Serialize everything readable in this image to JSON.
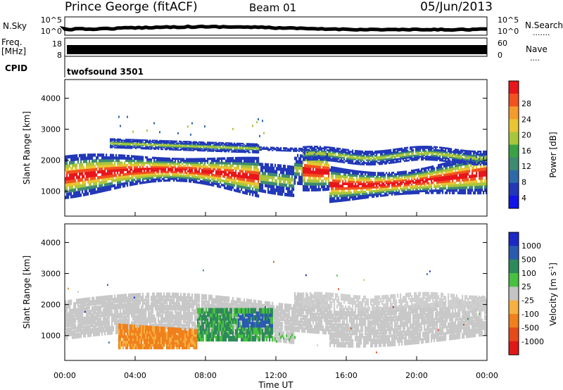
{
  "header": {
    "title": "Prince George (fitACF)",
    "beam": "Beam 01",
    "date": "05/Jun/2013"
  },
  "panels": {
    "nsky_label": "N.Sky",
    "nsearch_label": "N.Search",
    "nsearch_legend": ".......",
    "freq_label_1": "Freq.",
    "freq_label_2": "[MHz]",
    "nave_label": "Nave",
    "nave_legend": "....",
    "cpid_label": "CPID",
    "cpid_value": "twofsound 3501",
    "noise_ticks_left": [
      "10^5",
      "10^0"
    ],
    "noise_ticks_right": [
      "10^5",
      "10^0"
    ],
    "freq_ticks": [
      "18",
      "8"
    ],
    "nave_ticks": [
      "60",
      "0"
    ]
  },
  "colorbars": {
    "power": {
      "label": "Power [dB]",
      "ticks": [
        "28",
        "24",
        "20",
        "16",
        "12",
        "8",
        "4"
      ],
      "colors": [
        "#e8161b",
        "#f3521f",
        "#f59a2c",
        "#e8c531",
        "#a8c63c",
        "#3aa245",
        "#3f8a72",
        "#2f6aa8",
        "#2238b8",
        "#1214e8"
      ]
    },
    "velocity": {
      "label": "Velocity [m s",
      "label_sup": "-1",
      "label_close": "]",
      "ticks": [
        "1000",
        "500",
        "100",
        "25",
        "-25",
        "-100",
        "-500",
        "-1000"
      ],
      "colors": [
        "#1a28c8",
        "#2a5ab0",
        "#2f8a5a",
        "#48c040",
        "#c4c4c4",
        "#f5b040",
        "#f0801c",
        "#e64a1a",
        "#e01818"
      ]
    }
  },
  "chart_data": [
    {
      "type": "heatmap",
      "panel": "power",
      "ylabel": "Slant Range [km]",
      "xlabel": "",
      "y_ticks": [
        "1000",
        "2000",
        "3000",
        "4000"
      ],
      "ylim": [
        200,
        4600
      ],
      "xlim": [
        0,
        24
      ],
      "bands": [
        {
          "t": [
            0.5,
            23.8
          ],
          "r_center": [
            1400,
            1500,
            1600,
            1450,
            1500
          ],
          "r_width": 600,
          "dominant_db": [
            24,
            20,
            16,
            12,
            8
          ]
        },
        {
          "t": [
            13.5,
            23.8
          ],
          "r_center": [
            2200,
            2100,
            2000,
            2200
          ],
          "r_width": 500,
          "dominant_db": [
            12,
            8,
            4
          ]
        }
      ]
    },
    {
      "type": "heatmap",
      "panel": "velocity",
      "ylabel": "Slant Range [km]",
      "xlabel": "Time UT",
      "y_ticks": [
        "1000",
        "2000",
        "3000",
        "4000"
      ],
      "x_ticks": [
        "00:00",
        "04:00",
        "08:00",
        "12:00",
        "16:00",
        "20:00",
        "00:00"
      ],
      "ylim": [
        200,
        4600
      ],
      "xlim": [
        0,
        24
      ],
      "regions": [
        {
          "t": [
            3.0,
            7.5
          ],
          "r": [
            600,
            1300
          ],
          "velocity_ms": -500
        },
        {
          "t": [
            7.5,
            11.5
          ],
          "r": [
            900,
            1900
          ],
          "velocity_ms": 100
        },
        {
          "t": [
            10.0,
            11.8
          ],
          "r": [
            1300,
            1700
          ],
          "velocity_ms": 500
        },
        {
          "t": [
            0.0,
            24.0
          ],
          "r": [
            1000,
            2500
          ],
          "velocity_ms": 0
        }
      ]
    }
  ]
}
